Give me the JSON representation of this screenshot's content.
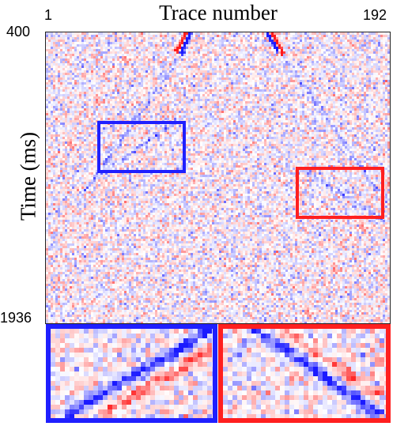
{
  "figure": {
    "title": "Trace number",
    "ylabel": "Time (ms)",
    "x_min_label": "1",
    "x_max_label": "192",
    "y_min_label": "400",
    "y_max_label": "1936"
  },
  "colormap": {
    "positive": "#1a1aff",
    "negative": "#ff1a1a",
    "zero": "#ffffff"
  },
  "highlights": [
    {
      "name": "blue-box",
      "color": "#1f1fff"
    },
    {
      "name": "red-box",
      "color": "#ff1f1f"
    }
  ],
  "chart_data": {
    "type": "heatmap",
    "title": "Trace number",
    "ylabel": "Time (ms)",
    "xlim": [
      1,
      192
    ],
    "ylim": [
      400,
      1936
    ]
  }
}
